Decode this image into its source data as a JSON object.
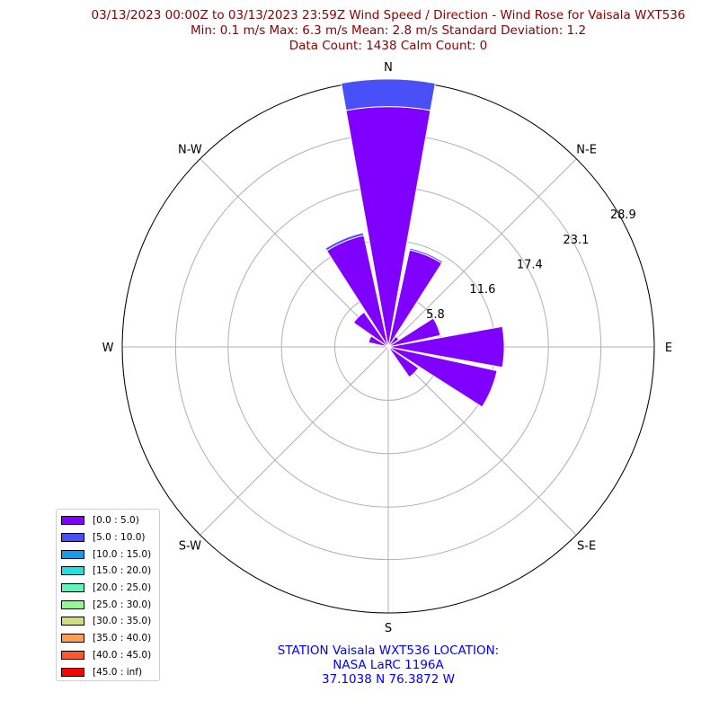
{
  "header": {
    "line1": "03/13/2023 00:00Z to 03/13/2023 23:59Z Wind Speed / Direction - Wind Rose for Vaisala WXT536",
    "line2": "Min: 0.1 m/s   Max: 6.3 m/s   Mean: 2.8 m/s  Standard Deviation: 1.2",
    "line3": "Data Count: 1438  Calm Count:  0"
  },
  "chart_data": {
    "type": "wind_rose",
    "direction_labels": [
      "N",
      "N-E",
      "E",
      "S-E",
      "S",
      "S-W",
      "W",
      "N-W"
    ],
    "radial_ticks": [
      5.8,
      11.6,
      17.4,
      23.1,
      28.9
    ],
    "radial_tick_labels": [
      "5.8",
      "11.6",
      "17.4",
      "23.1",
      "28.9"
    ],
    "rmax": 28.9,
    "sector_width_deg": 22.5,
    "sectors": [
      {
        "direction_deg": 0,
        "bins": [
          26.1,
          3.0
        ]
      },
      {
        "direction_deg": 22.5,
        "bins": [
          10.8,
          0.2
        ]
      },
      {
        "direction_deg": 45,
        "bins": [
          1.4
        ]
      },
      {
        "direction_deg": 67.5,
        "bins": [
          5.8
        ]
      },
      {
        "direction_deg": 90,
        "bins": [
          12.6
        ]
      },
      {
        "direction_deg": 112.5,
        "bins": [
          12.1
        ]
      },
      {
        "direction_deg": 135,
        "bins": [
          4.0
        ]
      },
      {
        "direction_deg": 157.5,
        "bins": [
          0.3
        ]
      },
      {
        "direction_deg": 180,
        "bins": [
          0.2
        ]
      },
      {
        "direction_deg": 292.5,
        "bins": [
          2.2
        ]
      },
      {
        "direction_deg": 315,
        "bins": [
          4.6
        ]
      },
      {
        "direction_deg": 337.5,
        "bins": [
          12.4,
          0.3
        ]
      }
    ],
    "legend": [
      {
        "label": "[0.0 : 5.0)",
        "color": "#8000ff"
      },
      {
        "label": "[5.0 : 10.0)",
        "color": "#4a50f8"
      },
      {
        "label": "[10.0 : 15.0)",
        "color": "#1a9ae8"
      },
      {
        "label": "[15.0 : 20.0)",
        "color": "#2adddd"
      },
      {
        "label": "[20.0 : 25.0)",
        "color": "#5cf7bb"
      },
      {
        "label": "[25.0 : 30.0)",
        "color": "#94f894"
      },
      {
        "label": "[30.0 : 35.0)",
        "color": "#cfde7e"
      },
      {
        "label": "[35.0 : 40.0)",
        "color": "#ff9f57"
      },
      {
        "label": "[40.0 : 45.0)",
        "color": "#ff5830"
      },
      {
        "label": "[45.0 : inf)",
        "color": "#ff0000"
      }
    ]
  },
  "footer": {
    "line1": "STATION Vaisala WXT536 LOCATION:",
    "line2": "NASA LaRC 1196A",
    "line3": "37.1038 N 76.3872 W"
  }
}
